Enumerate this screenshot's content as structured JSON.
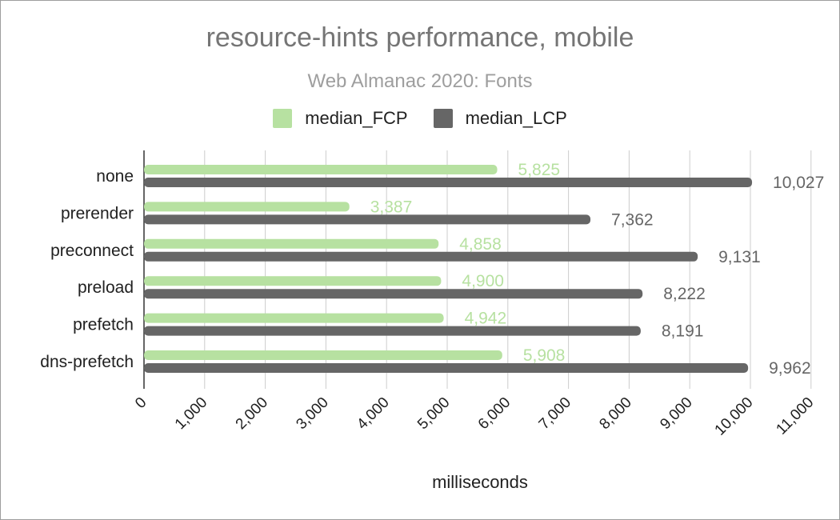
{
  "chart_data": {
    "type": "bar",
    "orientation": "horizontal",
    "title": "resource-hints performance, mobile",
    "subtitle": "Web Almanac 2020: Fonts",
    "categories": [
      "none",
      "prerender",
      "preconnect",
      "preload",
      "prefetch",
      "dns-prefetch"
    ],
    "series": [
      {
        "name": "median_FCP",
        "color": "#b7e1a1",
        "values": [
          5825,
          3387,
          4858,
          4900,
          4942,
          5908
        ],
        "labels": [
          "5,825",
          "3,387",
          "4,858",
          "4,900",
          "4,942",
          "5,908"
        ]
      },
      {
        "name": "median_LCP",
        "color": "#666666",
        "values": [
          10027,
          7362,
          9131,
          8222,
          8191,
          9962
        ],
        "labels": [
          "10,027",
          "7,362",
          "9,131",
          "8,222",
          "8,191",
          "9,962"
        ]
      }
    ],
    "xlabel": "milliseconds",
    "ylabel": "",
    "xlim": [
      0,
      11000
    ],
    "ticks": [
      0,
      1000,
      2000,
      3000,
      4000,
      5000,
      6000,
      7000,
      8000,
      9000,
      10000,
      11000
    ],
    "tick_labels": [
      "0",
      "1,000",
      "2,000",
      "3,000",
      "4,000",
      "5,000",
      "6,000",
      "7,000",
      "8,000",
      "9,000",
      "10,000",
      "11,000"
    ],
    "grid": true,
    "legend_position": "top"
  }
}
